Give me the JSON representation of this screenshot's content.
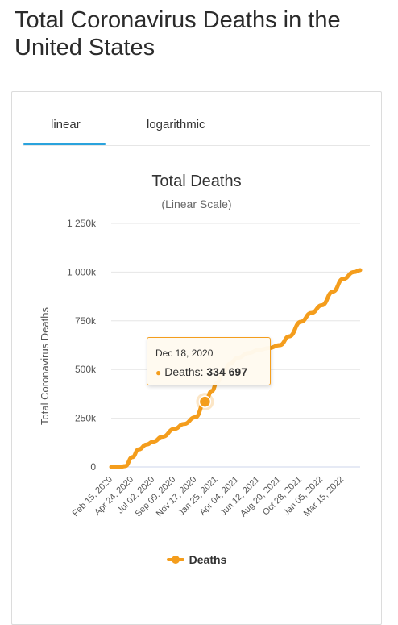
{
  "page": {
    "title": "Total Coronavirus Deaths in the United States"
  },
  "tabs": [
    {
      "label": "linear",
      "active": true
    },
    {
      "label": "logarithmic",
      "active": false
    }
  ],
  "colors": {
    "series": "#f49d1c",
    "tab_active": "#2aa3dd",
    "grid": "#e6e6e6"
  },
  "tooltip": {
    "date": "Dec 18, 2020",
    "series_label": "Deaths:",
    "value": "334 697",
    "value_num": 334697
  },
  "chart_data": {
    "type": "line",
    "title": "Total Deaths",
    "subtitle": "(Linear Scale)",
    "ylabel": "Total Coronavirus Deaths",
    "xlabel": "",
    "ylim": [
      0,
      1250000
    ],
    "y_ticks": [
      0,
      250000,
      500000,
      750000,
      1000000,
      1250000
    ],
    "y_tick_labels": [
      "0",
      "250k",
      "500k",
      "750k",
      "1 000k",
      "1 250k"
    ],
    "x_tick_labels": [
      "Feb 15, 2020",
      "Apr 24, 2020",
      "Jul 02, 2020",
      "Sep 09, 2020",
      "Nov 17, 2020",
      "Jan 25, 2021",
      "Apr 04, 2021",
      "Jun 12, 2021",
      "Aug 20, 2021",
      "Oct 28, 2021",
      "Jan 05, 2022",
      "Mar 15, 2022"
    ],
    "grid": true,
    "legend": "bottom",
    "series": [
      {
        "name": "Deaths",
        "x": [
          "2020-02-15",
          "2020-03-15",
          "2020-04-01",
          "2020-04-24",
          "2020-05-15",
          "2020-06-10",
          "2020-07-02",
          "2020-08-01",
          "2020-09-09",
          "2020-10-10",
          "2020-11-17",
          "2020-12-18",
          "2021-01-10",
          "2021-01-25",
          "2021-02-15",
          "2021-03-10",
          "2021-04-04",
          "2021-05-10",
          "2021-06-12",
          "2021-07-15",
          "2021-08-20",
          "2021-09-20",
          "2021-10-28",
          "2021-12-01",
          "2022-01-05",
          "2022-02-10",
          "2022-03-15",
          "2022-04-20",
          "2022-05-10"
        ],
        "values": [
          0,
          0,
          4000,
          50000,
          90000,
          115000,
          130000,
          155000,
          195000,
          220000,
          255000,
          334697,
          390000,
          430000,
          480000,
          530000,
          560000,
          585000,
          600000,
          610000,
          625000,
          670000,
          745000,
          790000,
          830000,
          900000,
          965000,
          1000000,
          1010000
        ]
      }
    ]
  }
}
